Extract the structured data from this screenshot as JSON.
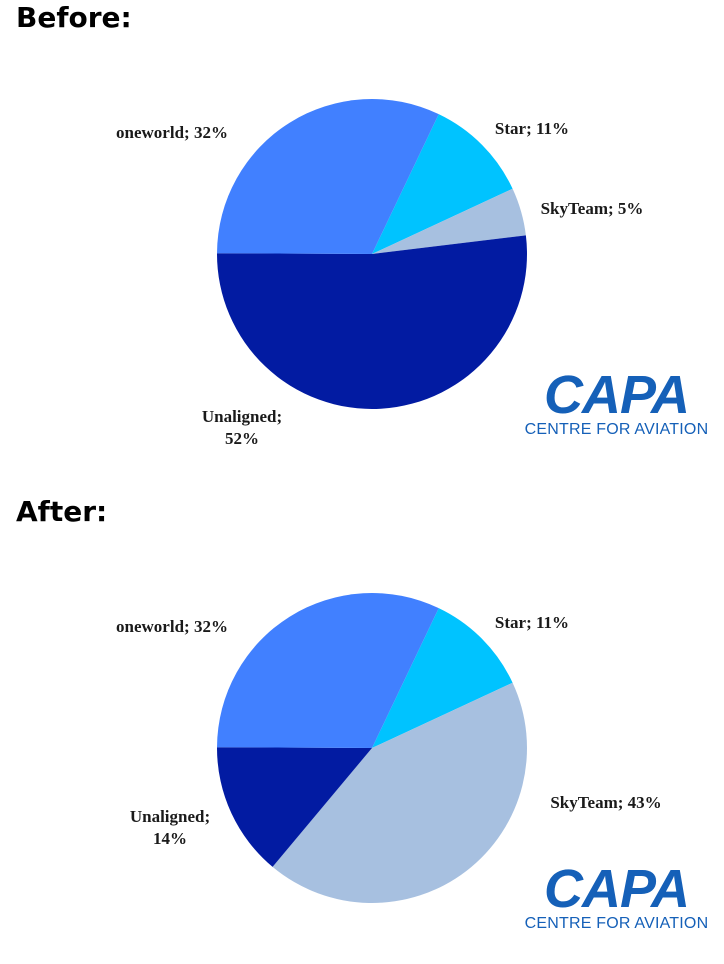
{
  "headings": {
    "before": "Before:",
    "after": "After:"
  },
  "logo": {
    "main": "CAPA",
    "sub": "CENTRE FOR AVIATION",
    "color": "#1560b8"
  },
  "chart_data": [
    {
      "type": "pie",
      "title": "Before:",
      "slices": [
        {
          "label": "Star",
          "label_lines": [
            "Star; 11%"
          ],
          "value": 11,
          "color": "#00c3ff"
        },
        {
          "label": "SkyTeam",
          "label_lines": [
            "SkyTeam; 5%"
          ],
          "value": 5,
          "color": "#a7c0e0"
        },
        {
          "label": "Unaligned",
          "label_lines": [
            "Unaligned;",
            "52%"
          ],
          "value": 52,
          "color": "#021ba2"
        },
        {
          "label": "oneworld",
          "label_lines": [
            "oneworld; 32%"
          ],
          "value": 32,
          "color": "#4180ff"
        }
      ]
    },
    {
      "type": "pie",
      "title": "After:",
      "slices": [
        {
          "label": "Star",
          "label_lines": [
            "Star; 11%"
          ],
          "value": 11,
          "color": "#00c3ff"
        },
        {
          "label": "SkyTeam",
          "label_lines": [
            "SkyTeam; 43%"
          ],
          "value": 43,
          "color": "#a7c0e0"
        },
        {
          "label": "Unaligned",
          "label_lines": [
            "Unaligned;",
            "14%"
          ],
          "value": 14,
          "color": "#021ba2"
        },
        {
          "label": "oneworld",
          "label_lines": [
            "oneworld; 32%"
          ],
          "value": 32,
          "color": "#4180ff"
        }
      ]
    }
  ]
}
